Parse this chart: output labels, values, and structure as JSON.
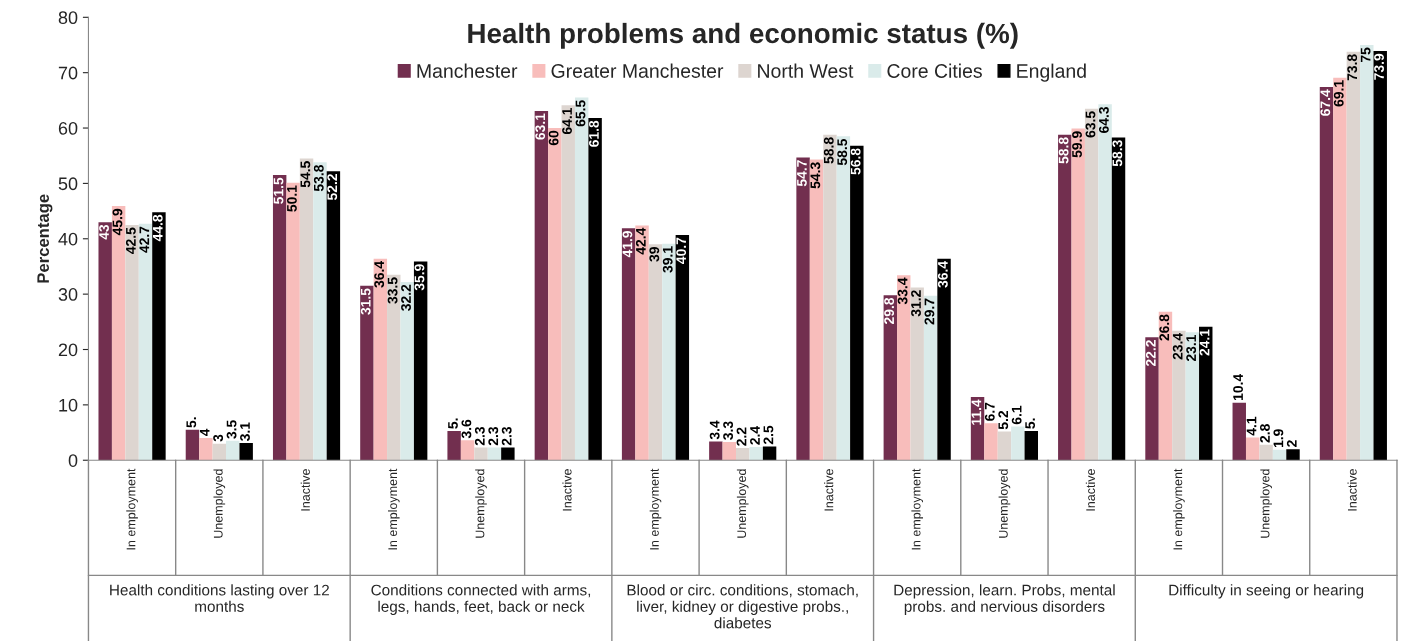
{
  "chart_data": {
    "type": "bar",
    "title": "Health problems and economic status (%)",
    "ylabel": "Percentage",
    "categories": [
      "In employment",
      "Unemployed",
      "Inactive",
      "In employment",
      "Unemployed",
      "Inactive",
      "In employment",
      "Unemployed",
      "Inactive",
      "In employment",
      "Unemployed",
      "Inactive",
      "In employment",
      "Unemployed",
      "Inactive"
    ],
    "annotations": [
      "Health conditions lasting over 12 months",
      "Conditions connected with arms, legs, hands, feet, back or neck",
      "Blood or circ. conditions, stomach, liver, kidney or digestive probs., diabetes",
      "Depression, learn. Probs, mental probs. and nervious disorders",
      "Difficulty in seeing or hearing"
    ],
    "series": [
      {
        "name": "Manchester",
        "color": "#722f4f",
        "values": [
          43,
          5.5,
          51.5,
          31.5,
          5.3,
          63.1,
          41.9,
          3.4,
          54.7,
          29.8,
          11.4,
          58.8,
          22.2,
          10.4,
          67.4
        ],
        "value_labels": [
          "43",
          "5.",
          "51.5",
          "31.5",
          "5.",
          "63.1",
          "41.9",
          "3.4",
          "54.7",
          "29.8",
          "11.4",
          "58.8",
          "22.2",
          "10.4",
          "67.4"
        ]
      },
      {
        "name": "Greater Manchester",
        "color": "#f8bdbb",
        "values": [
          45.9,
          4,
          50.1,
          36.4,
          3.6,
          60,
          42.4,
          3.3,
          54.3,
          33.4,
          6.7,
          59.9,
          26.8,
          4.1,
          69.1
        ],
        "value_labels": [
          "45.9",
          "4",
          "50.1",
          "36.4",
          "3.6",
          "60",
          "42.4",
          "3.3",
          "54.3",
          "33.4",
          "6.7",
          "59.9",
          "26.8",
          "4.1",
          "69.1"
        ]
      },
      {
        "name": "North West",
        "color": "#ddd5d0",
        "values": [
          42.5,
          3,
          54.5,
          33.5,
          2.3,
          64.1,
          39,
          2.2,
          58.8,
          31.2,
          5.2,
          63.5,
          23.4,
          2.8,
          73.8
        ],
        "value_labels": [
          "42.5",
          "3",
          "54.5",
          "33.5",
          "2.3",
          "64.1",
          "39",
          "2.2",
          "58.8",
          "31.2",
          "5.2",
          "63.5",
          "23.4",
          "2.8",
          "73.8"
        ]
      },
      {
        "name": "Core Cities",
        "color": "#daebea",
        "values": [
          42.7,
          3.5,
          53.8,
          32.2,
          2.3,
          65.5,
          39.1,
          2.4,
          58.5,
          29.7,
          6.1,
          64.3,
          23.1,
          1.9,
          75
        ],
        "value_labels": [
          "42.7",
          "3.5",
          "53.8",
          "32.2",
          "2.3",
          "65.5",
          "39.1",
          "2.4",
          "58.5",
          "29.7",
          "6.1",
          "64.3",
          "23.1",
          "1.9",
          "75"
        ]
      },
      {
        "name": "England",
        "color": "#000000",
        "values": [
          44.8,
          3.1,
          52.2,
          35.9,
          2.3,
          61.8,
          40.7,
          2.5,
          56.8,
          36.4,
          5.3,
          58.3,
          24.1,
          2,
          73.9
        ],
        "value_labels": [
          "44.8",
          "3.1",
          "52.2",
          "35.9",
          "2.3",
          "61.8",
          "40.7",
          "2.5",
          "56.8",
          "36.4",
          "5.",
          "58.3",
          "24.1",
          "2",
          "73.9"
        ]
      }
    ],
    "ylim": [
      0,
      80
    ],
    "yticks": [
      0,
      10,
      20,
      30,
      40,
      50,
      60,
      70,
      80
    ],
    "grid": false,
    "legend": "top"
  }
}
